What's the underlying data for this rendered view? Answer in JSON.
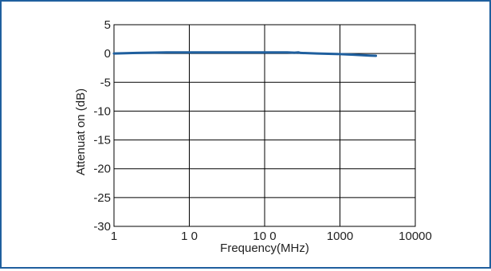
{
  "chart_data": {
    "type": "line",
    "title": "",
    "xlabel": "Frequency(MHz)",
    "ylabel": "Attenuat on (dB)",
    "x_scale": "log",
    "xlim": [
      1,
      10000
    ],
    "ylim": [
      -30,
      5
    ],
    "x_tick_labels": [
      "1",
      "1 0",
      "10 0",
      "1000",
      "10000"
    ],
    "x_tick_values": [
      1,
      10,
      100,
      1000,
      10000
    ],
    "y_tick_labels": [
      "5",
      "0",
      "-5",
      "-10",
      "-15",
      "-20",
      "-25",
      "-30"
    ],
    "y_tick_values": [
      5,
      0,
      -5,
      -10,
      -15,
      -20,
      -25,
      -30
    ],
    "grid": true,
    "series": [
      {
        "color": "#1f5f9e",
        "x": [
          1,
          2,
          5,
          10,
          20,
          50,
          100,
          200,
          250,
          280,
          300,
          500,
          1000,
          1500,
          2000,
          2500,
          3000
        ],
        "y": [
          0,
          0.1,
          0.2,
          0.2,
          0.2,
          0.2,
          0.2,
          0.2,
          0.15,
          0.2,
          0.1,
          0,
          -0.1,
          -0.2,
          -0.3,
          -0.35,
          -0.4
        ]
      }
    ]
  },
  "colors": {
    "frame_border": "#1f5f9e",
    "series": "#1f5f9e",
    "axes": "#000000",
    "grid": "#000000"
  }
}
